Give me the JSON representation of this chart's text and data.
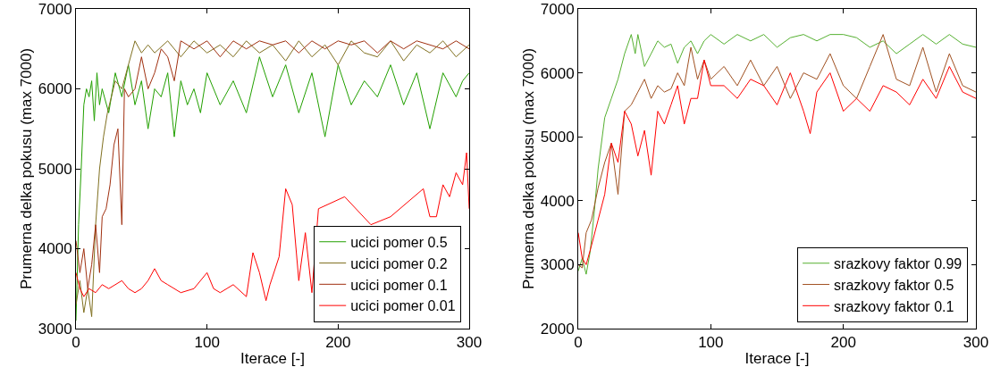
{
  "chart_data": [
    {
      "type": "line",
      "xlabel": "Iterace [-]",
      "ylabel": "Prumerna delka pokusu (max 7000)",
      "xlim": [
        0,
        300
      ],
      "xticks": [
        0,
        100,
        200,
        300
      ],
      "ylim": [
        3000,
        7000
      ],
      "yticks": [
        3000,
        4000,
        5000,
        6000,
        7000
      ],
      "grid": false,
      "legend": "bottom right",
      "series": [
        {
          "name": "ucici pomer 0.5",
          "color": "#22a000",
          "x": [
            0,
            2,
            4,
            6,
            8,
            10,
            12,
            14,
            16,
            18,
            20,
            25,
            30,
            35,
            40,
            45,
            50,
            55,
            60,
            65,
            70,
            75,
            80,
            85,
            90,
            95,
            100,
            110,
            120,
            130,
            140,
            150,
            160,
            170,
            180,
            190,
            200,
            210,
            220,
            230,
            240,
            250,
            260,
            270,
            280,
            290,
            295,
            300
          ],
          "values": [
            3100,
            4300,
            5000,
            5800,
            6000,
            5900,
            6100,
            5600,
            6200,
            5800,
            6000,
            5700,
            6200,
            5900,
            6300,
            5800,
            6100,
            5500,
            6000,
            5900,
            6200,
            5400,
            6100,
            5800,
            6000,
            5700,
            6200,
            5800,
            6100,
            5700,
            6400,
            5900,
            6300,
            5700,
            6200,
            5400,
            6300,
            5800,
            6100,
            5900,
            6300,
            5800,
            6200,
            5500,
            6200,
            5900,
            6100,
            6200
          ]
        },
        {
          "name": "ucici pomer 0.2",
          "color": "#807020",
          "x": [
            0,
            3,
            6,
            9,
            12,
            15,
            18,
            21,
            24,
            27,
            30,
            35,
            40,
            45,
            50,
            55,
            60,
            70,
            80,
            90,
            100,
            110,
            120,
            130,
            140,
            150,
            160,
            170,
            180,
            190,
            200,
            210,
            220,
            230,
            240,
            250,
            260,
            270,
            280,
            290,
            300
          ],
          "values": [
            3300,
            3600,
            3200,
            3500,
            3150,
            4300,
            5000,
            5400,
            5700,
            5900,
            6100,
            6000,
            6300,
            6600,
            6450,
            6550,
            6450,
            6600,
            6400,
            6600,
            6450,
            6550,
            6400,
            6600,
            6450,
            6550,
            6350,
            6600,
            6400,
            6550,
            6300,
            6600,
            6450,
            6400,
            6600,
            6350,
            6550,
            6450,
            6600,
            6400,
            6550
          ]
        },
        {
          "name": "ucici pomer 0.1",
          "color": "#a03010",
          "x": [
            0,
            3,
            6,
            9,
            12,
            15,
            18,
            20,
            23,
            26,
            29,
            32,
            35,
            37,
            40,
            45,
            50,
            55,
            60,
            65,
            70,
            75,
            80,
            90,
            100,
            110,
            120,
            130,
            140,
            150,
            160,
            170,
            180,
            190,
            200,
            210,
            220,
            230,
            240,
            250,
            260,
            270,
            280,
            290,
            300
          ],
          "values": [
            4100,
            3700,
            4000,
            3500,
            3800,
            4300,
            3700,
            4400,
            4500,
            4800,
            5300,
            5500,
            4300,
            6000,
            5900,
            6000,
            6400,
            6000,
            6200,
            6500,
            6400,
            6100,
            6600,
            6500,
            6600,
            6400,
            6600,
            6500,
            6600,
            6550,
            6600,
            6450,
            6600,
            6500,
            6600,
            6550,
            6600,
            6450,
            6600,
            6500,
            6600,
            6550,
            6500,
            6600,
            6500
          ]
        },
        {
          "name": "ucici pomer 0.01",
          "color": "#ff0000",
          "x": [
            0,
            3,
            6,
            10,
            15,
            20,
            25,
            30,
            35,
            40,
            45,
            50,
            55,
            60,
            65,
            70,
            80,
            90,
            100,
            105,
            110,
            120,
            130,
            135,
            140,
            145,
            148,
            155,
            160,
            165,
            170,
            175,
            180,
            185,
            205,
            225,
            240,
            265,
            270,
            275,
            280,
            285,
            290,
            295,
            298,
            300
          ],
          "values": [
            3700,
            3500,
            3400,
            3500,
            3450,
            3550,
            3500,
            3550,
            3600,
            3500,
            3450,
            3500,
            3600,
            3750,
            3600,
            3550,
            3450,
            3500,
            3700,
            3500,
            3450,
            3550,
            3400,
            3950,
            3700,
            3350,
            3550,
            3900,
            4750,
            4550,
            3600,
            4200,
            3450,
            4500,
            4650,
            4300,
            4400,
            4750,
            4400,
            4400,
            4800,
            4650,
            4950,
            4800,
            5200,
            4500
          ]
        }
      ]
    },
    {
      "type": "line",
      "xlabel": "Iterace [-]",
      "ylabel": "Prumerna delka pokusu (max 7000)",
      "xlim": [
        0,
        300
      ],
      "xticks": [
        0,
        100,
        200,
        300
      ],
      "ylim": [
        2000,
        7000
      ],
      "yticks": [
        2000,
        3000,
        4000,
        5000,
        6000,
        7000
      ],
      "grid": false,
      "legend": "bottom right",
      "series": [
        {
          "name": "srazkovy faktor 0.99",
          "color": "#55b030",
          "x": [
            0,
            3,
            6,
            9,
            12,
            15,
            20,
            25,
            30,
            35,
            40,
            43,
            45,
            50,
            55,
            60,
            65,
            70,
            75,
            80,
            85,
            90,
            95,
            100,
            110,
            120,
            130,
            140,
            150,
            160,
            170,
            180,
            190,
            200,
            210,
            220,
            230,
            240,
            250,
            260,
            270,
            280,
            290,
            300
          ],
          "values": [
            2900,
            3100,
            2850,
            3200,
            3800,
            4500,
            5300,
            5600,
            5900,
            6300,
            6600,
            6300,
            6600,
            6100,
            6300,
            6500,
            6400,
            6450,
            6150,
            6400,
            6500,
            6300,
            6500,
            6600,
            6450,
            6600,
            6500,
            6600,
            6400,
            6550,
            6600,
            6500,
            6600,
            6600,
            6550,
            6400,
            6500,
            6300,
            6450,
            6600,
            6450,
            6600,
            6450,
            6400
          ]
        },
        {
          "name": "srazkovy faktor 0.5",
          "color": "#a05020",
          "x": [
            0,
            3,
            6,
            10,
            15,
            20,
            25,
            30,
            35,
            40,
            45,
            50,
            55,
            60,
            65,
            70,
            75,
            80,
            85,
            90,
            95,
            100,
            110,
            120,
            130,
            140,
            150,
            160,
            170,
            180,
            190,
            200,
            210,
            220,
            230,
            240,
            250,
            260,
            270,
            280,
            290,
            300
          ],
          "values": [
            3000,
            2950,
            3500,
            3700,
            4200,
            4600,
            4900,
            4100,
            5400,
            5500,
            5700,
            5900,
            5600,
            5800,
            5700,
            5750,
            6000,
            5800,
            6400,
            5900,
            6200,
            5900,
            6100,
            5800,
            6200,
            5800,
            6100,
            5600,
            6000,
            5900,
            6300,
            5800,
            5600,
            6100,
            6600,
            5900,
            5800,
            6400,
            5700,
            6300,
            5800,
            5700
          ]
        },
        {
          "name": "srazkovy faktor 0.1",
          "color": "#ff0000",
          "x": [
            0,
            3,
            6,
            10,
            15,
            20,
            25,
            30,
            35,
            40,
            45,
            50,
            55,
            60,
            65,
            70,
            75,
            80,
            85,
            90,
            95,
            100,
            110,
            120,
            130,
            140,
            150,
            160,
            170,
            175,
            180,
            190,
            200,
            210,
            220,
            230,
            240,
            250,
            260,
            270,
            280,
            290,
            300
          ],
          "values": [
            3500,
            3100,
            3000,
            3300,
            3700,
            4100,
            4900,
            4600,
            5400,
            5200,
            4700,
            5100,
            4400,
            5400,
            5200,
            5500,
            5800,
            5200,
            5600,
            5600,
            6200,
            5800,
            5800,
            5600,
            5900,
            5800,
            5500,
            6000,
            5400,
            5050,
            5700,
            6000,
            5400,
            5600,
            5400,
            5800,
            5700,
            5500,
            5900,
            5600,
            6100,
            5700,
            5600
          ]
        }
      ]
    }
  ]
}
